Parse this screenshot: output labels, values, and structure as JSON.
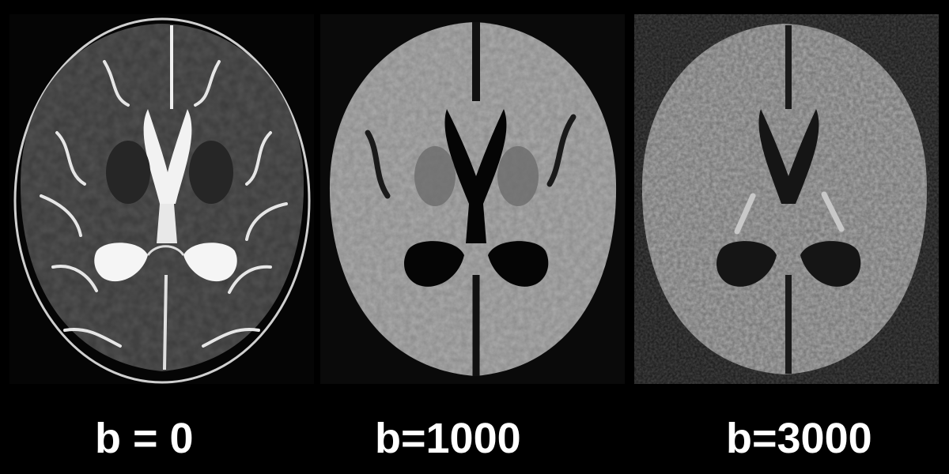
{
  "panels": [
    {
      "label": "b = 0",
      "tissue_color": "#3a3a3a",
      "csf_color": "#f2f2f2",
      "background_color": "#050505"
    },
    {
      "label": "b=1000",
      "tissue_color": "#8a8a8a",
      "csf_color": "#050505",
      "background_color": "#0a0a0a"
    },
    {
      "label": "b=3000",
      "tissue_color": "#6e6e6e",
      "csf_color": "#141414",
      "background_color": "#141414"
    }
  ],
  "image_type": "axial brain MRI diffusion-weighted series"
}
